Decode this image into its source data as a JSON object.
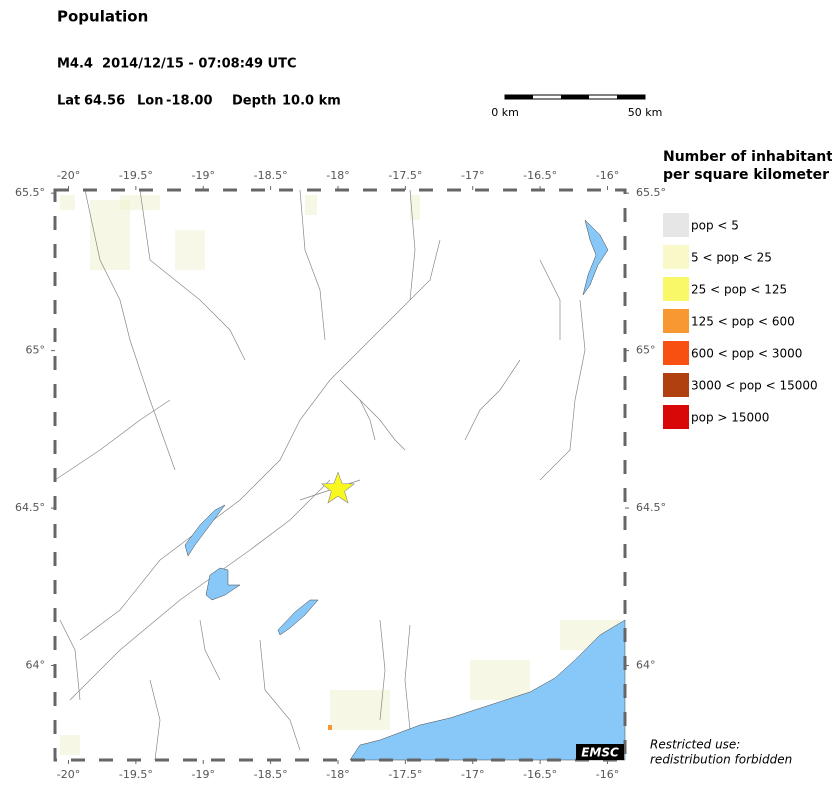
{
  "header": {
    "title": "Population",
    "event": "M4.4  2014/12/15 - 07:08:49 UTC",
    "lat_label": "Lat",
    "lat": 64.56,
    "lon_label": "Lon",
    "lon": {
      "value": -18,
      "label": "-18.00"
    },
    "depth_label": "Depth",
    "depth": "10.0 km"
  },
  "scale_bar": {
    "start": "0 km",
    "end": "50 km"
  },
  "map": {
    "xlim": [
      -20.1,
      -15.87
    ],
    "ylim": [
      63.7,
      65.51
    ],
    "xticks": [
      {
        "value": -20,
        "label": "-20°"
      },
      {
        "value": -19.5,
        "label": "-19.5°"
      },
      {
        "value": -19,
        "label": "-19°"
      },
      {
        "value": -18.5,
        "label": "-18.5°"
      },
      {
        "value": -18,
        "label": "-18°"
      },
      {
        "value": -17.5,
        "label": "-17.5°"
      },
      {
        "value": -17,
        "label": "-17°"
      },
      {
        "value": -16.5,
        "label": "-16.5°"
      },
      {
        "value": -16,
        "label": "-16°"
      }
    ],
    "yticks": [
      {
        "value": 64,
        "label": "64°"
      },
      {
        "value": 64.5,
        "label": "64.5°"
      },
      {
        "value": 65,
        "label": "65°"
      },
      {
        "value": 65.5,
        "label": "65.5°"
      }
    ],
    "logo": "EMSC"
  },
  "legend": {
    "title": [
      "Number of inhabitants",
      "per square kilometer"
    ],
    "items": [
      {
        "label": "pop < 5",
        "color": "#e6e6e6"
      },
      {
        "label": "5 < pop < 25",
        "color": "#f8f8c8"
      },
      {
        "label": "25 < pop < 125",
        "color": "#f8f868"
      },
      {
        "label": "125 < pop < 600",
        "color": "#f89830"
      },
      {
        "label": "600 < pop < 3000",
        "color": "#f85010"
      },
      {
        "label": "3000 < pop < 15000",
        "color": "#b04010"
      },
      {
        "label": "pop > 15000",
        "color": "#d80808"
      }
    ]
  },
  "notice": [
    "Restricted use:",
    "redistribution forbidden"
  ]
}
